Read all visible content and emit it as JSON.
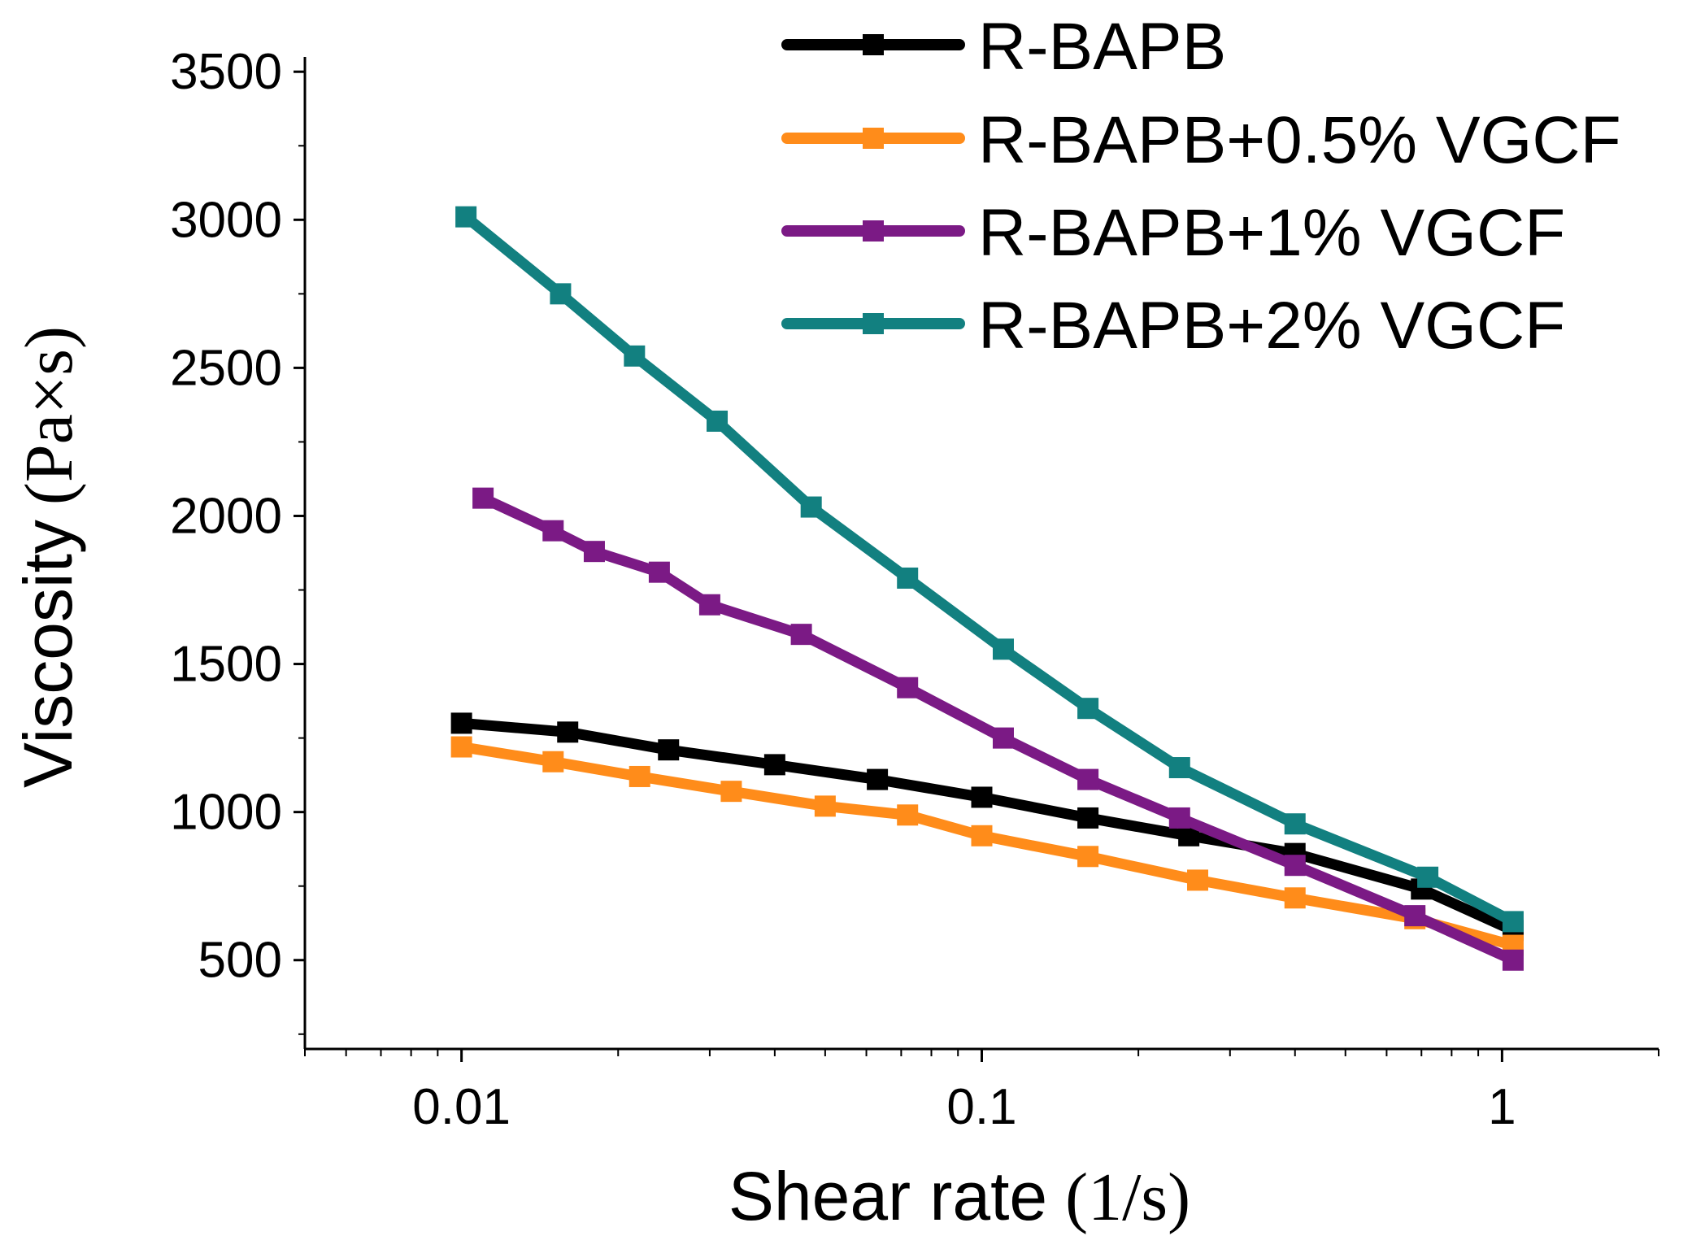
{
  "chart_data": {
    "type": "line",
    "xscale": "log",
    "xlim": [
      0.005,
      2
    ],
    "ylim": [
      200,
      3550
    ],
    "xlabel": "Shear rate",
    "xlabel_unit": "(1/s)",
    "ylabel": "Viscosity",
    "ylabel_unit": "(Pa×s)",
    "xticks": [
      {
        "value": 0.01,
        "label": "0.01"
      },
      {
        "value": 0.1,
        "label": "0.1"
      },
      {
        "value": 1,
        "label": "1"
      }
    ],
    "yticks": [
      {
        "value": 500,
        "label": "500"
      },
      {
        "value": 1000,
        "label": "1000"
      },
      {
        "value": 1500,
        "label": "1500"
      },
      {
        "value": 2000,
        "label": "2000"
      },
      {
        "value": 2500,
        "label": "2500"
      },
      {
        "value": 3000,
        "label": "3000"
      },
      {
        "value": 3500,
        "label": "3500"
      }
    ],
    "legend_position": "top-right",
    "series": [
      {
        "name": "R-BAPB",
        "color": "#000000",
        "x": [
          0.01,
          0.016,
          0.025,
          0.04,
          0.063,
          0.1,
          0.16,
          0.25,
          0.4,
          0.7,
          1.05
        ],
        "y": [
          1300,
          1270,
          1210,
          1160,
          1110,
          1050,
          980,
          920,
          860,
          740,
          600
        ]
      },
      {
        "name": "R-BAPB+0.5% VGCF",
        "color": "#ff8c1a",
        "x": [
          0.01,
          0.015,
          0.022,
          0.033,
          0.05,
          0.072,
          0.1,
          0.16,
          0.26,
          0.4,
          0.68,
          1.05
        ],
        "y": [
          1220,
          1170,
          1120,
          1070,
          1020,
          990,
          920,
          850,
          770,
          710,
          640,
          550
        ]
      },
      {
        "name": "R-BAPB+1% VGCF",
        "color": "#7b1a85",
        "x": [
          0.011,
          0.015,
          0.018,
          0.024,
          0.03,
          0.045,
          0.072,
          0.11,
          0.16,
          0.24,
          0.4,
          0.68,
          1.05
        ],
        "y": [
          2060,
          1950,
          1880,
          1810,
          1700,
          1600,
          1420,
          1250,
          1110,
          980,
          820,
          650,
          500
        ]
      },
      {
        "name": "R-BAPB+2% VGCF",
        "color": "#128080",
        "x": [
          0.0102,
          0.0155,
          0.0215,
          0.031,
          0.047,
          0.072,
          0.11,
          0.16,
          0.24,
          0.4,
          0.72,
          1.05
        ],
        "y": [
          3010,
          2750,
          2540,
          2320,
          2030,
          1790,
          1550,
          1350,
          1150,
          960,
          780,
          630
        ]
      }
    ]
  }
}
